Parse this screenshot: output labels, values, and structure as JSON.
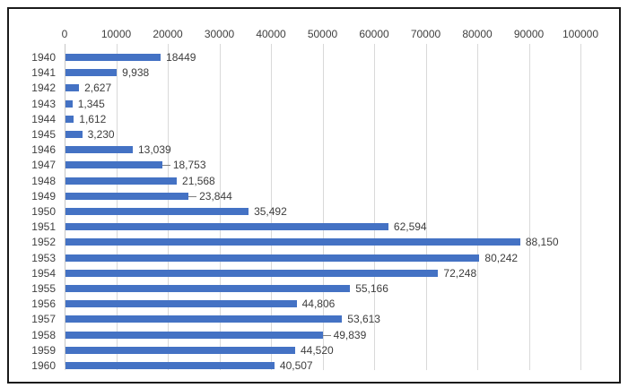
{
  "chart_data": {
    "type": "bar",
    "orientation": "horizontal",
    "title": "",
    "xlabel": "",
    "ylabel": "",
    "categories": [
      "1940",
      "1941",
      "1942",
      "1943",
      "1944",
      "1945",
      "1946",
      "1947",
      "1948",
      "1949",
      "1950",
      "1951",
      "1952",
      "1953",
      "1954",
      "1955",
      "1956",
      "1957",
      "1958",
      "1959",
      "1960"
    ],
    "values": [
      18449,
      9938,
      2627,
      1345,
      1612,
      3230,
      13039,
      18753,
      21568,
      23844,
      35492,
      62594,
      88150,
      80242,
      72248,
      55166,
      44806,
      53613,
      49839,
      44520,
      40507
    ],
    "data_labels": [
      "18449",
      "9,938",
      "2,627",
      "1,345",
      "1,612",
      "3,230",
      "13,039",
      "18,753",
      "21,568",
      "23,844",
      "35,492",
      "62,594",
      "88,150",
      "80,242",
      "72,248",
      "55,166",
      "44,806",
      "53,613",
      "49,839",
      "44,520",
      "40,507"
    ],
    "leader_line_rows": [
      7,
      9,
      18
    ],
    "xlim": [
      0,
      100000
    ],
    "x_ticks": [
      0,
      10000,
      20000,
      30000,
      40000,
      50000,
      60000,
      70000,
      80000,
      90000,
      100000
    ],
    "x_tick_labels": [
      "0",
      "10000",
      "20000",
      "30000",
      "40000",
      "50000",
      "60000",
      "70000",
      "80000",
      "90000",
      "100000"
    ],
    "axis_position": "top",
    "grid": true,
    "legend": false,
    "colors": {
      "bar": "#4472c4",
      "gridline": "#d9d9d9",
      "zero_axis_line": "#c6c6c6",
      "text": "#404040",
      "leader_line": "#808080",
      "frame_border": "#1a1a1a",
      "background": "#ffffff"
    }
  }
}
